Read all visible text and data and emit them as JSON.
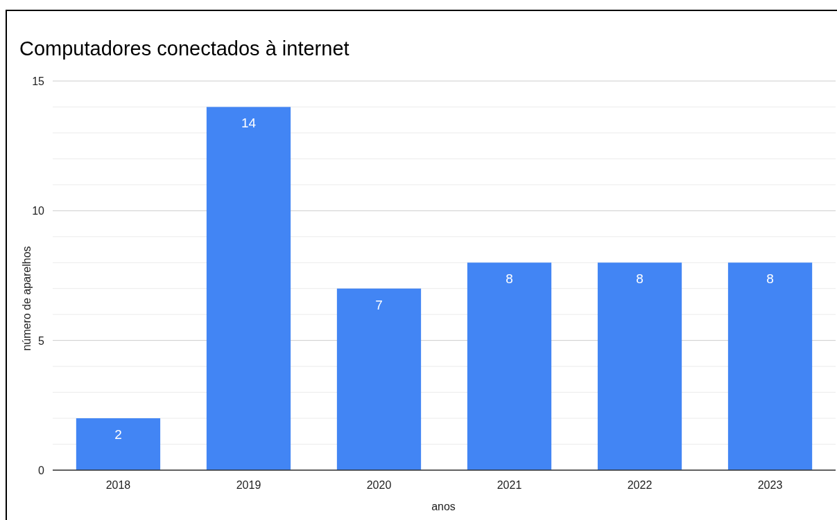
{
  "chart_data": {
    "type": "bar",
    "title": "Computadores conectados à internet",
    "xlabel": "anos",
    "ylabel": "número de aparelhos",
    "categories": [
      "2018",
      "2019",
      "2020",
      "2021",
      "2022",
      "2023"
    ],
    "values": [
      2,
      14,
      7,
      8,
      8,
      8
    ],
    "color": "#4285f4",
    "data_labels": true,
    "ylim": [
      0,
      15
    ],
    "yticks": [
      0,
      {
        "value": 1,
        "label": null
      },
      {
        "value": 2,
        "label": null
      },
      {
        "value": 3,
        "label": null
      },
      {
        "value": 4,
        "label": null
      },
      5,
      {
        "value": 6,
        "label": null
      },
      {
        "value": 7,
        "label": null
      },
      {
        "value": 8,
        "label": null
      },
      {
        "value": 9,
        "label": null
      },
      10,
      {
        "value": 11,
        "label": null
      },
      {
        "value": 12,
        "label": null
      },
      {
        "value": 13,
        "label": null
      },
      {
        "value": 14,
        "label": null
      },
      15
    ],
    "grid": "y"
  }
}
